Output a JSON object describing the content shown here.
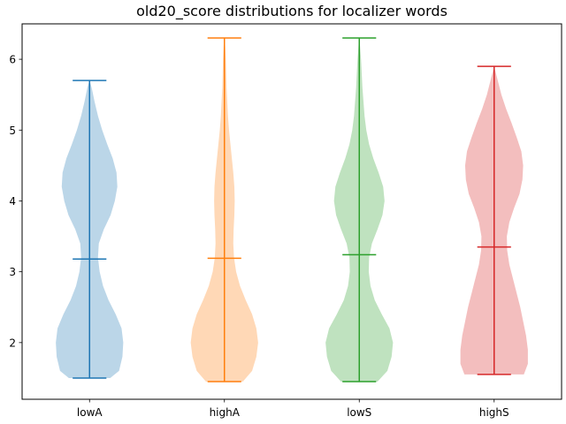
{
  "chart_data": {
    "type": "violin",
    "title": "old20_score distributions for localizer words",
    "xlabel": "",
    "ylabel": "",
    "ylim": [
      1.2,
      6.5
    ],
    "y_ticks": [
      2,
      3,
      4,
      5,
      6
    ],
    "y_tick_labels": [
      "2",
      "3",
      "4",
      "5",
      "6"
    ],
    "grid": false,
    "categories": [
      "lowA",
      "highA",
      "lowS",
      "highS"
    ],
    "series": [
      {
        "color": "#1f77b4",
        "min": 1.5,
        "max": 5.7,
        "mean": 3.18,
        "density": [
          [
            1.5,
            0.49
          ],
          [
            1.6,
            0.7
          ],
          [
            1.8,
            0.78
          ],
          [
            2.0,
            0.8
          ],
          [
            2.2,
            0.76
          ],
          [
            2.4,
            0.62
          ],
          [
            2.6,
            0.45
          ],
          [
            2.8,
            0.32
          ],
          [
            3.0,
            0.24
          ],
          [
            3.2,
            0.2
          ],
          [
            3.4,
            0.22
          ],
          [
            3.6,
            0.34
          ],
          [
            3.8,
            0.5
          ],
          [
            4.0,
            0.6
          ],
          [
            4.2,
            0.66
          ],
          [
            4.4,
            0.64
          ],
          [
            4.6,
            0.55
          ],
          [
            4.8,
            0.42
          ],
          [
            5.0,
            0.3
          ],
          [
            5.2,
            0.2
          ],
          [
            5.4,
            0.12
          ],
          [
            5.6,
            0.05
          ],
          [
            5.7,
            0.0
          ]
        ]
      },
      {
        "color": "#ff7f0e",
        "min": 1.45,
        "max": 6.3,
        "mean": 3.19,
        "density": [
          [
            1.45,
            0.52
          ],
          [
            1.6,
            0.78
          ],
          [
            1.8,
            0.9
          ],
          [
            2.0,
            0.95
          ],
          [
            2.2,
            0.9
          ],
          [
            2.4,
            0.78
          ],
          [
            2.6,
            0.6
          ],
          [
            2.8,
            0.44
          ],
          [
            3.0,
            0.33
          ],
          [
            3.2,
            0.27
          ],
          [
            3.4,
            0.25
          ],
          [
            3.6,
            0.26
          ],
          [
            3.8,
            0.28
          ],
          [
            4.0,
            0.29
          ],
          [
            4.2,
            0.28
          ],
          [
            4.4,
            0.25
          ],
          [
            4.6,
            0.21
          ],
          [
            4.8,
            0.17
          ],
          [
            5.0,
            0.13
          ],
          [
            5.2,
            0.1
          ],
          [
            5.4,
            0.08
          ],
          [
            5.6,
            0.06
          ],
          [
            5.8,
            0.05
          ],
          [
            6.0,
            0.04
          ],
          [
            6.2,
            0.02
          ],
          [
            6.3,
            0.0
          ]
        ]
      },
      {
        "color": "#2ca02c",
        "min": 1.45,
        "max": 6.3,
        "mean": 3.24,
        "density": [
          [
            1.45,
            0.52
          ],
          [
            1.6,
            0.8
          ],
          [
            1.8,
            0.92
          ],
          [
            2.0,
            0.96
          ],
          [
            2.2,
            0.86
          ],
          [
            2.4,
            0.64
          ],
          [
            2.6,
            0.44
          ],
          [
            2.8,
            0.32
          ],
          [
            3.0,
            0.27
          ],
          [
            3.2,
            0.28
          ],
          [
            3.4,
            0.36
          ],
          [
            3.6,
            0.52
          ],
          [
            3.8,
            0.66
          ],
          [
            4.0,
            0.72
          ],
          [
            4.2,
            0.68
          ],
          [
            4.4,
            0.55
          ],
          [
            4.6,
            0.4
          ],
          [
            4.8,
            0.28
          ],
          [
            5.0,
            0.2
          ],
          [
            5.2,
            0.15
          ],
          [
            5.4,
            0.12
          ],
          [
            5.6,
            0.09
          ],
          [
            5.8,
            0.07
          ],
          [
            6.0,
            0.05
          ],
          [
            6.2,
            0.02
          ],
          [
            6.3,
            0.0
          ]
        ]
      },
      {
        "color": "#d62728",
        "min": 1.55,
        "max": 5.9,
        "mean": 3.35,
        "density": [
          [
            1.55,
            0.82
          ],
          [
            1.7,
            0.93
          ],
          [
            1.9,
            0.93
          ],
          [
            2.1,
            0.88
          ],
          [
            2.3,
            0.8
          ],
          [
            2.5,
            0.72
          ],
          [
            2.7,
            0.62
          ],
          [
            2.9,
            0.52
          ],
          [
            3.1,
            0.42
          ],
          [
            3.3,
            0.36
          ],
          [
            3.5,
            0.35
          ],
          [
            3.7,
            0.42
          ],
          [
            3.9,
            0.55
          ],
          [
            4.1,
            0.7
          ],
          [
            4.3,
            0.78
          ],
          [
            4.5,
            0.8
          ],
          [
            4.7,
            0.75
          ],
          [
            4.9,
            0.62
          ],
          [
            5.1,
            0.48
          ],
          [
            5.3,
            0.33
          ],
          [
            5.5,
            0.2
          ],
          [
            5.7,
            0.1
          ],
          [
            5.9,
            0.0
          ]
        ]
      }
    ]
  }
}
